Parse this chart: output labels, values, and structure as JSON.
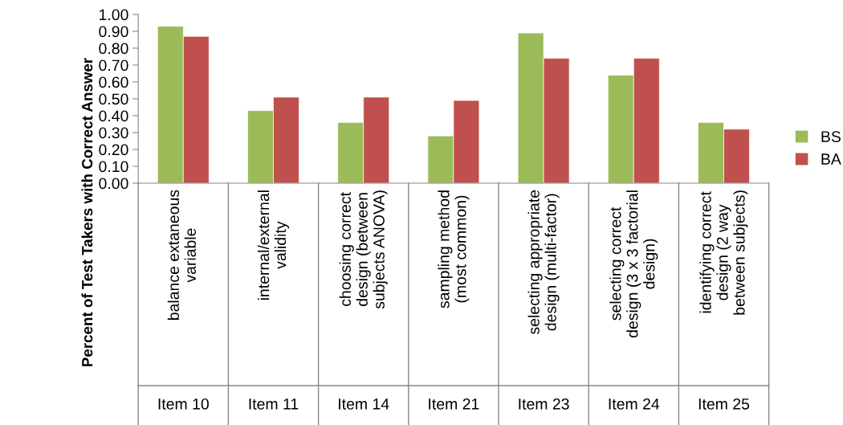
{
  "chart_data": {
    "type": "bar",
    "ylabel": "Percent of Test Takers with Correct Answer",
    "categories": [
      "balance extaneous\nvariable",
      "internal/external\nvalidity",
      "choosing correct\ndesign (between\nsubjects ANOVA)",
      "sampling method\n(most common)",
      "selecting appropriate\ndesign (multi-factor)",
      "selecting correct\ndesign (3 x 3 factorial\ndesign)",
      "identifying correct\ndesign (2 way\nbetween subjects)"
    ],
    "series": [
      {
        "name": "BS",
        "color": "#9bbb59",
        "values": [
          0.93,
          0.43,
          0.36,
          0.28,
          0.89,
          0.64,
          0.36
        ]
      },
      {
        "name": "BA",
        "color": "#c0504d",
        "values": [
          0.87,
          0.51,
          0.51,
          0.49,
          0.74,
          0.74,
          0.32
        ]
      }
    ],
    "annotations": [
      "Item 10",
      "Item 11",
      "Item 14",
      "Item 21",
      "Item 23",
      "Item 24",
      "Item 25"
    ],
    "ylim": [
      0,
      1
    ],
    "yticks": [
      {
        "value": 0,
        "label": "0.00"
      },
      {
        "value": 0.1,
        "label": "0.10"
      },
      {
        "value": 0.2,
        "label": "0.20"
      },
      {
        "value": 0.3,
        "label": "0.30"
      },
      {
        "value": 0.4,
        "label": "0.40"
      },
      {
        "value": 0.5,
        "label": "0.50"
      },
      {
        "value": 0.6,
        "label": "0.60"
      },
      {
        "value": 0.7,
        "label": "0.70"
      },
      {
        "value": 0.8,
        "label": "0.80"
      },
      {
        "value": 0.9,
        "label": "0.90"
      },
      {
        "value": 1,
        "label": "1.00"
      }
    ],
    "grid": false,
    "legend": "right"
  }
}
